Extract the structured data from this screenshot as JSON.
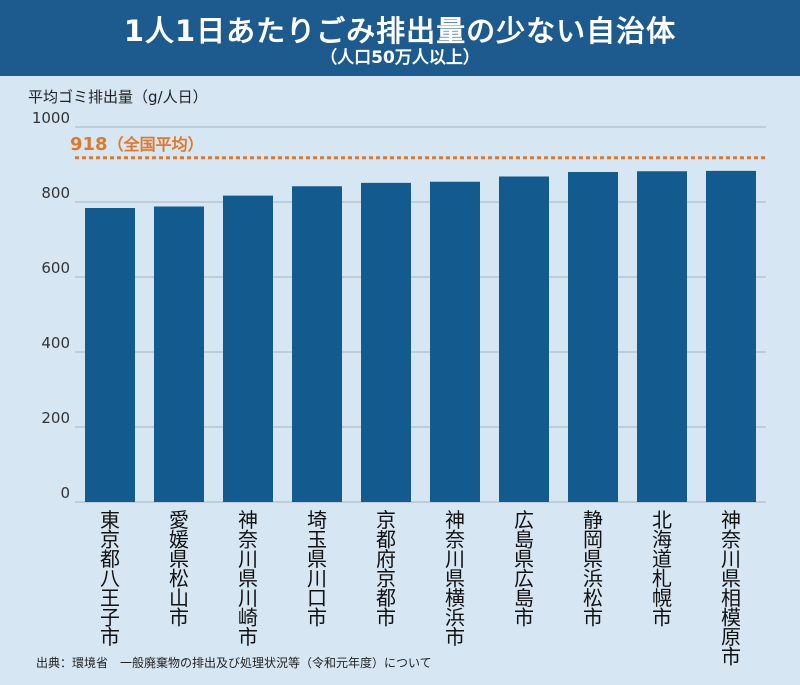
{
  "header": {
    "title": "1人1日あたりごみ排出量の少ない自治体",
    "subtitle": "（人口50万人以上）"
  },
  "colors": {
    "header_bg": "#1d5b8e",
    "bar": "#135a8f",
    "reference": "#e0782b",
    "background": "#d6e6f3"
  },
  "chart_data": {
    "type": "bar",
    "title": "1人1日あたりごみ排出量の少ない自治体",
    "subtitle": "（人口50万人以上）",
    "ylabel": "平均ゴミ排出量（g/人日）",
    "xlabel": "",
    "ylim": [
      0,
      1000
    ],
    "yticks": [
      0,
      200,
      400,
      600,
      800,
      1000
    ],
    "grid": true,
    "categories": [
      "東京都八王子市",
      "愛媛県松山市",
      "神奈川県川崎市",
      "埼玉県川口市",
      "京都府京都市",
      "神奈川県横浜市",
      "広島県広島市",
      "静岡県浜松市",
      "北海道札幌市",
      "神奈川県相模原市"
    ],
    "values": [
      784,
      788,
      817,
      842,
      851,
      854,
      868,
      880,
      882,
      883
    ],
    "reference_line": {
      "value": 918,
      "value_label": "918",
      "label": "（全国平均）"
    }
  },
  "source": "出典：環境省　一般廃棄物の排出及び処理状況等（令和元年度）について"
}
